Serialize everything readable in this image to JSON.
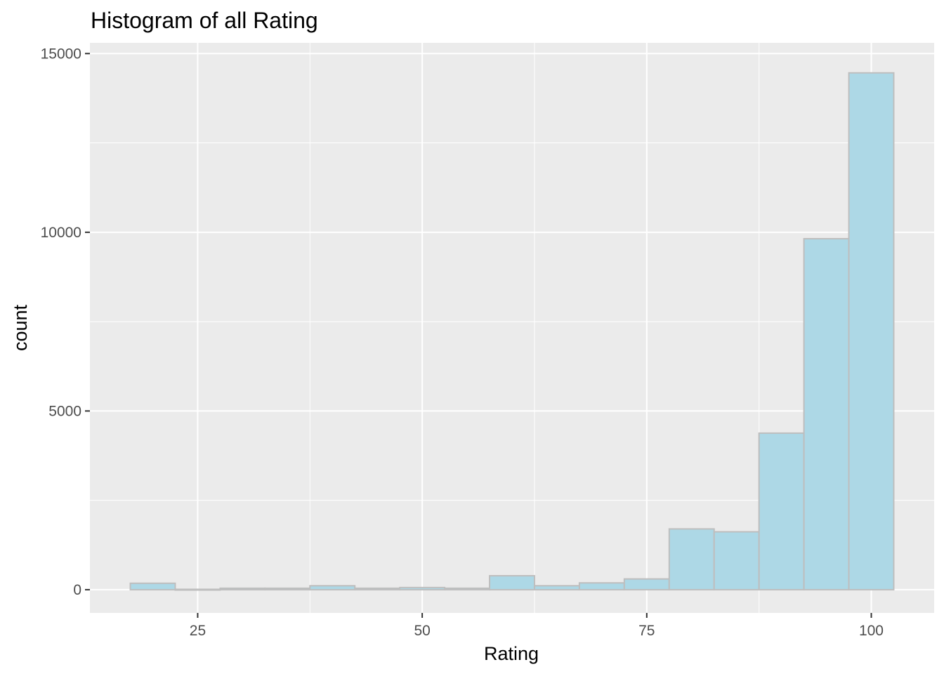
{
  "chart_data": {
    "type": "bar",
    "title": "Histogram of all Rating",
    "xlabel": "Rating",
    "ylabel": "count",
    "xlim": [
      13,
      107
    ],
    "ylim": [
      -650,
      15300
    ],
    "x_ticks": [
      25,
      50,
      75,
      100
    ],
    "x_tick_labels": [
      "25",
      "50",
      "75",
      "100"
    ],
    "x_minor_ticks": [
      12.5,
      37.5,
      62.5,
      87.5
    ],
    "y_ticks": [
      0,
      5000,
      10000,
      15000
    ],
    "y_tick_labels": [
      "0",
      "5000",
      "10000",
      "15000"
    ],
    "y_minor_ticks": [
      2500,
      7500,
      12500
    ],
    "grid": true,
    "legend": "none",
    "binwidth": 5,
    "bin_centers": [
      20,
      25,
      30,
      35,
      40,
      45,
      50,
      55,
      60,
      65,
      70,
      75,
      80,
      85,
      90,
      95,
      100
    ],
    "values": [
      180,
      10,
      40,
      40,
      110,
      40,
      60,
      40,
      390,
      110,
      190,
      300,
      1700,
      1620,
      4380,
      9820,
      14460
    ],
    "colors": {
      "panel": "#EBEBEB",
      "grid": "#FFFFFF",
      "bar_fill": "#ADD8E6",
      "bar_stroke": "#BEBEBE",
      "tick_text": "#4D4D4D",
      "tick_mark": "#333333"
    }
  }
}
